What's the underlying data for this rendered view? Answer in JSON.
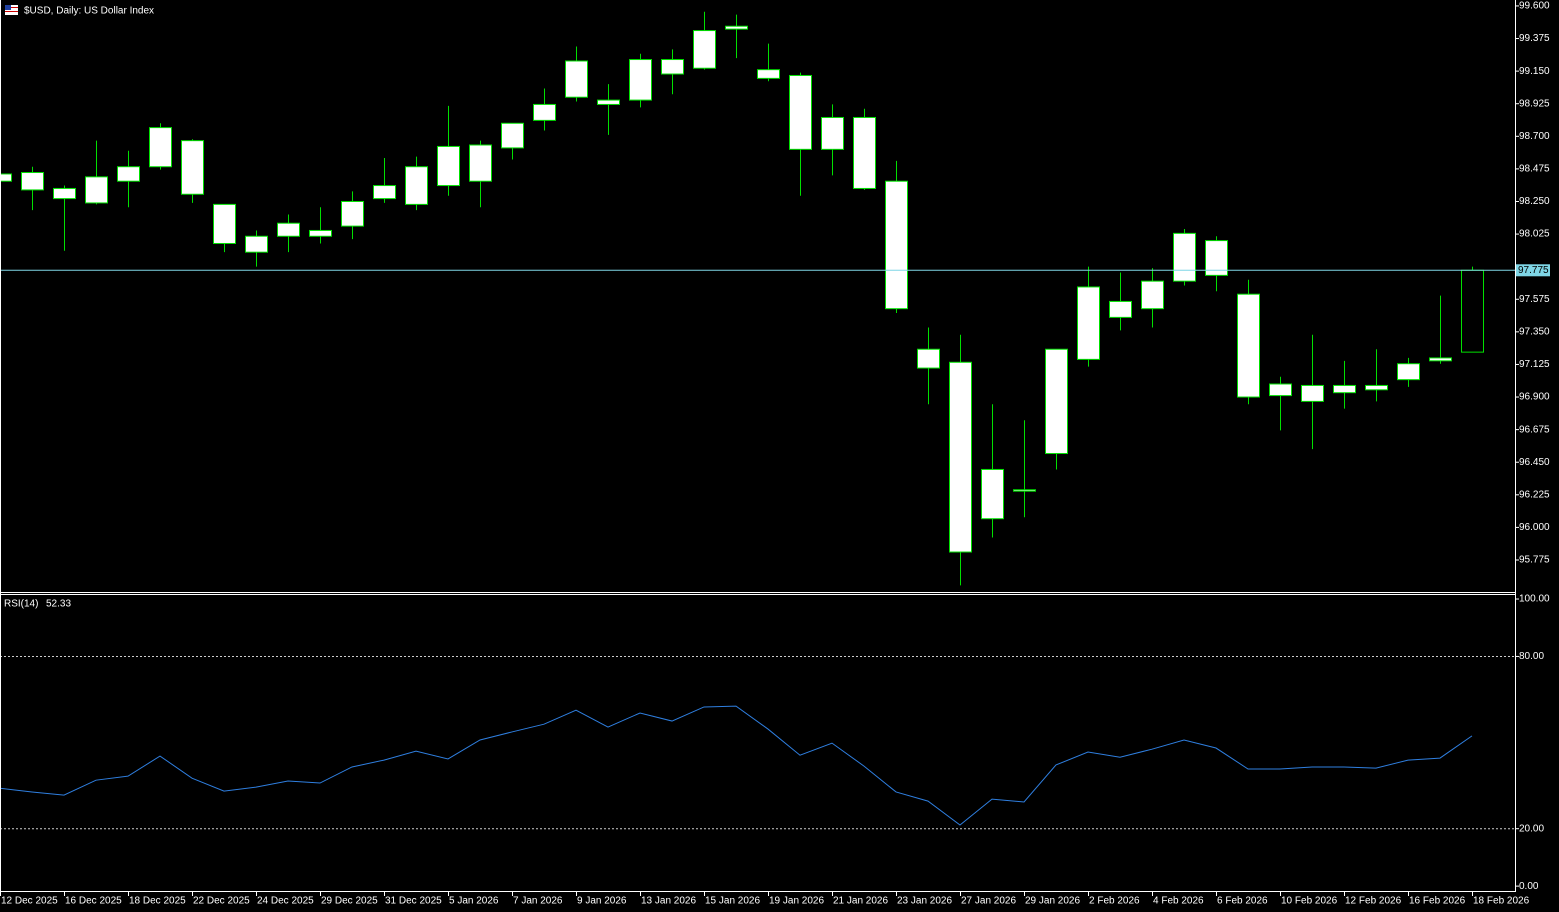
{
  "chart_data": [
    {
      "type": "candlestick",
      "title": "$USD, Daily:  US Dollar Index",
      "categories": [
        "12 Dec 2025",
        null,
        "16 Dec 2025",
        null,
        "18 Dec 2025",
        null,
        "22 Dec 2025",
        null,
        "24 Dec 2025",
        null,
        "29 Dec 2025",
        null,
        "31 Dec 2025",
        null,
        "5 Jan 2026",
        null,
        "7 Jan 2026",
        null,
        "9 Jan 2026",
        null,
        "13 Jan 2026",
        null,
        "15 Jan 2026",
        null,
        "19 Jan 2026",
        null,
        "21 Jan 2026",
        null,
        "23 Jan 2026",
        null,
        "27 Jan 2026",
        null,
        "29 Jan 2026",
        null,
        "2 Feb 2026",
        null,
        "4 Feb 2026",
        null,
        "6 Feb 2026",
        null,
        "10 Feb 2026",
        null,
        "12 Feb 2026",
        null,
        "16 Feb 2026",
        null,
        "18 Feb 2026"
      ],
      "open": [
        98.44,
        98.45,
        98.34,
        98.42,
        98.49,
        98.76,
        98.67,
        98.23,
        98.01,
        98.1,
        98.05,
        98.25,
        98.36,
        98.49,
        98.63,
        98.64,
        98.79,
        98.92,
        99.22,
        98.95,
        99.23,
        99.23,
        99.43,
        99.46,
        99.16,
        99.12,
        98.83,
        98.83,
        98.39,
        97.23,
        97.14,
        96.4,
        96.26,
        97.23,
        97.66,
        97.56,
        97.7,
        98.03,
        97.98,
        97.61,
        96.99,
        96.98,
        96.98,
        96.98,
        97.13,
        97.17,
        97.21
      ],
      "high": [
        98.44,
        98.49,
        98.36,
        98.67,
        98.6,
        98.79,
        98.68,
        98.23,
        98.05,
        98.16,
        98.21,
        98.32,
        98.55,
        98.56,
        98.91,
        98.67,
        98.79,
        99.03,
        99.32,
        99.06,
        99.27,
        99.3,
        99.56,
        99.54,
        99.34,
        99.14,
        98.92,
        98.89,
        98.53,
        97.38,
        97.33,
        96.85,
        96.74,
        97.23,
        97.8,
        97.76,
        97.79,
        98.06,
        98.01,
        97.71,
        97.04,
        97.33,
        97.15,
        97.23,
        97.17,
        97.6,
        97.8
      ],
      "low": [
        98.39,
        98.19,
        97.91,
        98.23,
        98.21,
        98.47,
        98.24,
        97.9,
        97.8,
        97.9,
        97.96,
        97.99,
        98.24,
        98.19,
        98.29,
        98.21,
        98.54,
        98.74,
        98.94,
        98.71,
        98.9,
        98.99,
        99.16,
        99.24,
        99.08,
        98.29,
        98.43,
        98.33,
        97.48,
        96.85,
        95.6,
        95.93,
        96.07,
        96.4,
        97.11,
        97.36,
        97.38,
        97.67,
        97.63,
        96.85,
        96.67,
        96.54,
        96.82,
        96.87,
        96.97,
        97.13,
        97.21
      ],
      "close": [
        98.39,
        98.33,
        98.27,
        98.24,
        98.39,
        98.49,
        98.3,
        97.96,
        97.9,
        98.01,
        98.01,
        98.08,
        98.27,
        98.23,
        98.36,
        98.39,
        98.62,
        98.81,
        98.97,
        98.92,
        98.95,
        99.13,
        99.17,
        99.44,
        99.1,
        98.61,
        98.61,
        98.34,
        97.51,
        97.1,
        95.83,
        96.06,
        96.25,
        96.51,
        97.16,
        97.45,
        97.51,
        97.7,
        97.74,
        96.9,
        96.91,
        96.87,
        96.93,
        96.95,
        97.02,
        97.15,
        97.775
      ],
      "color": "#00e000",
      "up_fill": "#000000",
      "down_fill": "#ffffff",
      "ylim": [
        95.554,
        99.641
      ],
      "yticks": [
        {
          "value": 99.6,
          "label": "99.600"
        },
        {
          "value": 99.375,
          "label": "99.375"
        },
        {
          "value": 99.15,
          "label": "99.150"
        },
        {
          "value": 98.925,
          "label": "98.925"
        },
        {
          "value": 98.7,
          "label": "98.700"
        },
        {
          "value": 98.475,
          "label": "98.475"
        },
        {
          "value": 98.25,
          "label": "98.250"
        },
        {
          "value": 98.025,
          "label": "98.025"
        },
        {
          "value": 97.575,
          "label": "97.575"
        },
        {
          "value": 97.35,
          "label": "97.350"
        },
        {
          "value": 97.125,
          "label": "97.125"
        },
        {
          "value": 96.9,
          "label": "96.900"
        },
        {
          "value": 96.675,
          "label": "96.675"
        },
        {
          "value": 96.45,
          "label": "96.450"
        },
        {
          "value": 96.225,
          "label": "96.225"
        },
        {
          "value": 96.0,
          "label": "96.000"
        },
        {
          "value": 95.775,
          "label": "95.775"
        }
      ],
      "price_line": {
        "value": 97.775,
        "label": "97.775",
        "color": "#7fd6e6"
      }
    },
    {
      "type": "line",
      "title": "RSI(14)",
      "series": [
        {
          "name": "RSI(14)",
          "color": "#2f7fe0",
          "values": [
            34.1,
            32.8,
            31.7,
            36.9,
            38.3,
            45.3,
            37.6,
            33.1,
            34.5,
            36.6,
            35.9,
            41.5,
            43.9,
            47.0,
            44.3,
            50.9,
            53.7,
            56.4,
            61.3,
            55.4,
            60.3,
            57.5,
            62.4,
            62.7,
            54.7,
            45.6,
            49.8,
            41.8,
            32.8,
            29.6,
            21.3,
            30.3,
            29.3,
            42.2,
            46.7,
            44.9,
            47.7,
            50.9,
            48.1,
            40.8,
            40.8,
            41.5,
            41.5,
            41.1,
            43.9,
            44.6,
            52.33
          ]
        }
      ],
      "ylim": [
        -1.7,
        101.4
      ],
      "yticks": [
        {
          "value": 100,
          "label": "100.00"
        },
        {
          "value": 80,
          "label": "80.00"
        },
        {
          "value": 20,
          "label": "20.00"
        },
        {
          "value": 0,
          "label": "0.00"
        }
      ],
      "levels": [
        80,
        20
      ]
    }
  ]
}
